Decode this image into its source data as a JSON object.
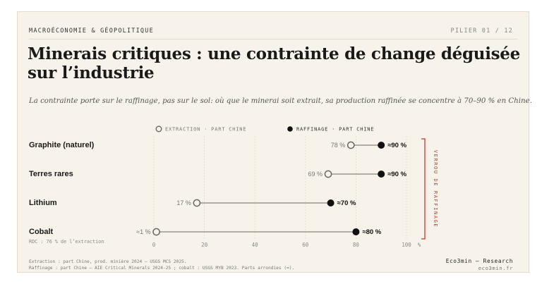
{
  "header": {
    "section": "MACROÉCONOMIE & GÉOPOLITIQUE",
    "pillar": "PILIER 01 / 12"
  },
  "title": "Minerais critiques : une contrainte de change déguisée sur l’industrie",
  "subtitle": "La contrainte porte sur le raffinage, pas sur le sol: où que le minerai soit extrait, sa production raffinée se concentre à 70–90 % en Chine.",
  "footer": {
    "source1": "Extraction : part Chine, prod. minière 2024 — USGS MCS 2025.",
    "source2": "Raffinage : part Chine — AIE Critical Minerals 2024-25 ; cobalt : USGS MYB 2023. Parts arrondies (≈).",
    "brand": "Eco3min — Research",
    "site": "eco3min.fr"
  },
  "colors": {
    "background": "#f7f3ea",
    "raffinage": "#111111",
    "extraction_fill": "#f7f3ea",
    "extraction_stroke": "#666666",
    "bracket": "#c0392b"
  },
  "chart_data": {
    "type": "dumbbell",
    "title": "",
    "xlabel": "",
    "x_unit": "%",
    "xlim": [
      0,
      100
    ],
    "xticks": [
      0,
      20,
      40,
      60,
      80,
      100
    ],
    "grid": true,
    "legend": {
      "position": "top",
      "extraction": "EXTRACTION · PART CHINE",
      "raffinage": "RAFFINAGE · PART CHINE"
    },
    "bracket_label": "VERROU DE RAFFINAGE",
    "categories": [
      {
        "name": "Graphite (naturel)",
        "extraction": 78,
        "extraction_label": "78 %",
        "raffinage": 90,
        "raffinage_label": "≈90 %",
        "note": ""
      },
      {
        "name": "Terres rares",
        "extraction": 69,
        "extraction_label": "69 %",
        "raffinage": 90,
        "raffinage_label": "≈90 %",
        "note": ""
      },
      {
        "name": "Lithium",
        "extraction": 17,
        "extraction_label": "17 %",
        "raffinage": 70,
        "raffinage_label": "≈70 %",
        "note": ""
      },
      {
        "name": "Cobalt",
        "extraction": 1,
        "extraction_label": "≈1 %",
        "raffinage": 80,
        "raffinage_label": "≈80 %",
        "note": "RDC : 76 % de l’extraction"
      }
    ]
  }
}
